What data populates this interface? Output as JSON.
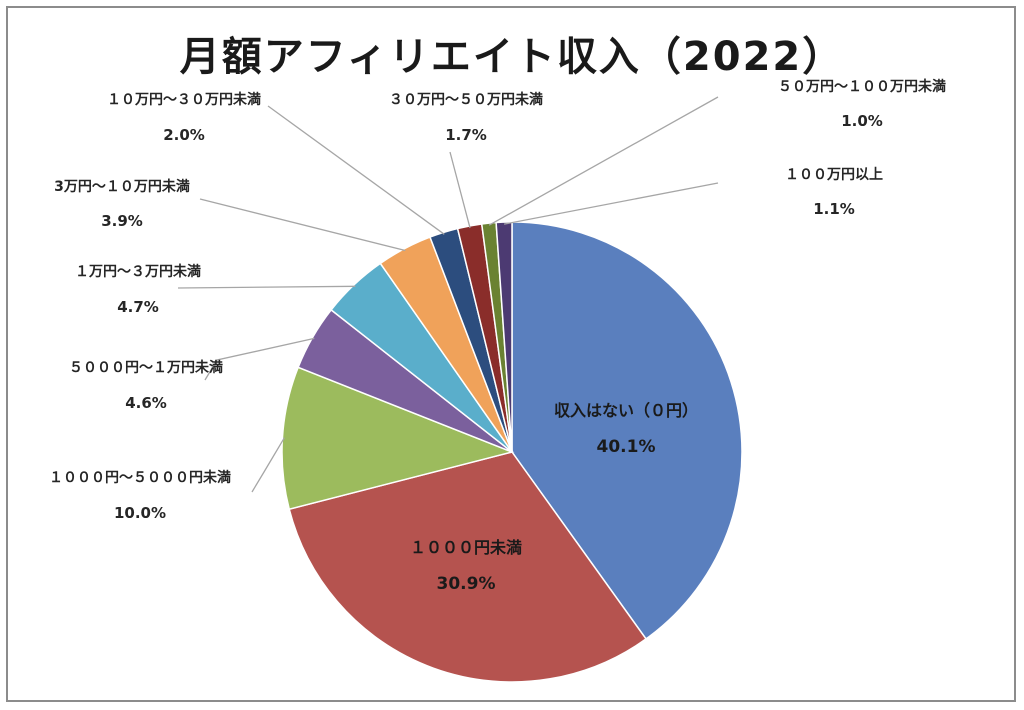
{
  "chart_data": {
    "type": "pie",
    "title": "月額アフィリエイト収入（2022）",
    "unit": "%",
    "slices": [
      {
        "label": "収入はない（０円）",
        "value": 40.1,
        "display": "40.1%",
        "color": "#5a7fbe"
      },
      {
        "label": "１０００円未満",
        "value": 30.9,
        "display": "30.9%",
        "color": "#b5534f"
      },
      {
        "label": "１０００円～５０００円未満",
        "value": 10.0,
        "display": "10.0%",
        "color": "#9cbb5d"
      },
      {
        "label": "５０００円～１万円未満",
        "value": 4.6,
        "display": "4.6%",
        "color": "#7b609d"
      },
      {
        "label": "１万円～３万円未満",
        "value": 4.7,
        "display": "4.7%",
        "color": "#5aaecb"
      },
      {
        "label": "3万円～１０万円未満",
        "value": 3.9,
        "display": "3.9%",
        "color": "#f0a25a"
      },
      {
        "label": "１０万円～３０万円未満",
        "value": 2.0,
        "display": "2.0%",
        "color": "#2c4d7e"
      },
      {
        "label": "３０万円～５０万円未満",
        "value": 1.7,
        "display": "1.7%",
        "color": "#8a2d2a"
      },
      {
        "label": "５０万円～１００万円未満",
        "value": 1.0,
        "display": "1.0%",
        "color": "#6a8232"
      },
      {
        "label": "１００万円以上",
        "value": 1.1,
        "display": "1.1%",
        "color": "#4c3a72"
      }
    ],
    "start_angle_deg": 0,
    "direction": "clockwise"
  }
}
